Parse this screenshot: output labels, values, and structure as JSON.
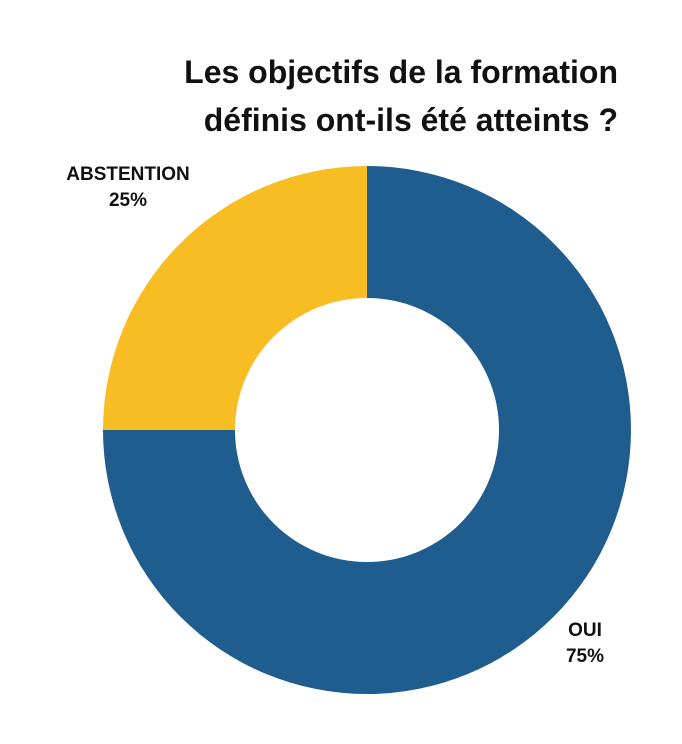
{
  "chart_data": {
    "type": "pie",
    "title_lines": [
      "Les objectifs de la formation",
      "définis ont-ils été atteints ?"
    ],
    "categories": [
      "OUI",
      "ABSTENTION"
    ],
    "values": [
      75,
      25
    ],
    "percent_labels": [
      "75%",
      "25%"
    ],
    "colors": [
      "#1f5d8f",
      "#f9bd24"
    ],
    "donut": true,
    "legend": "none"
  }
}
